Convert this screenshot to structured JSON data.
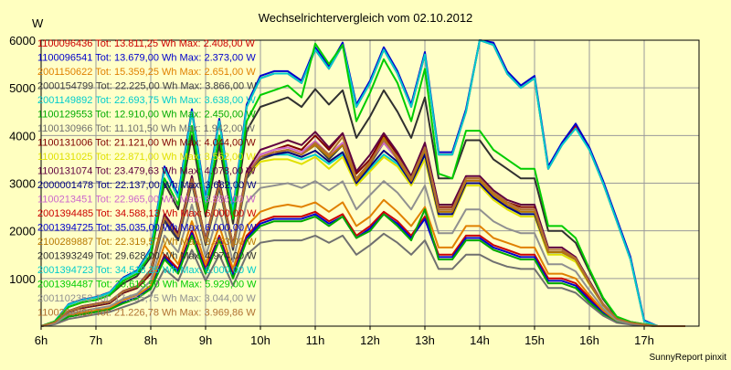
{
  "chart_data": {
    "type": "line",
    "title": "Wechselrichtervergleich vom 02.10.2012",
    "ylabel": "W",
    "xlabel": "",
    "footer": "SunnyReport pinxit",
    "ylim": [
      0,
      6000
    ],
    "yticks": [
      1000,
      2000,
      3000,
      4000,
      5000,
      6000
    ],
    "xlim": [
      6,
      18
    ],
    "xticks": [
      "6h",
      "7h",
      "8h",
      "9h",
      "10h",
      "11h",
      "12h",
      "13h",
      "14h",
      "15h",
      "16h",
      "17h"
    ],
    "grid": true,
    "x": [
      6.0,
      6.25,
      6.5,
      6.75,
      7.0,
      7.25,
      7.5,
      7.75,
      8.0,
      8.25,
      8.5,
      8.75,
      9.0,
      9.25,
      9.5,
      9.75,
      10.0,
      10.25,
      10.5,
      10.75,
      11.0,
      11.25,
      11.5,
      11.75,
      12.0,
      12.25,
      12.5,
      12.75,
      13.0,
      13.25,
      13.5,
      13.75,
      14.0,
      14.25,
      14.5,
      14.75,
      15.0,
      15.25,
      15.5,
      15.75,
      16.0,
      16.25,
      16.5,
      16.75,
      17.0,
      17.25,
      17.5,
      17.75
    ],
    "series": [
      {
        "id": "1100096436",
        "label": "1100096436 Tot: 13.811,25 Wh Max: 2.408,00 W",
        "color": "#cc0000",
        "values": [
          0,
          50,
          200,
          250,
          300,
          350,
          500,
          600,
          800,
          1500,
          1200,
          2000,
          1200,
          1900,
          1100,
          1900,
          2200,
          2300,
          2300,
          2300,
          2400,
          2200,
          2350,
          1900,
          2100,
          2400,
          2200,
          1900,
          2300,
          1500,
          1500,
          1900,
          1900,
          1700,
          1600,
          1500,
          1500,
          1000,
          1000,
          900,
          600,
          300,
          100,
          50,
          20,
          0,
          0,
          0
        ]
      },
      {
        "id": "1100096541",
        "label": "1100096541 Tot: 13.679,00 Wh Max: 2.373,00 W",
        "color": "#0000cc",
        "values": [
          0,
          50,
          200,
          250,
          300,
          350,
          500,
          600,
          800,
          1450,
          1150,
          1950,
          1150,
          1850,
          1050,
          1850,
          2150,
          2250,
          2250,
          2250,
          2350,
          2150,
          2300,
          1850,
          2050,
          2350,
          2150,
          1850,
          2250,
          1450,
          1450,
          1850,
          1850,
          1650,
          1550,
          1450,
          1450,
          950,
          950,
          850,
          550,
          280,
          90,
          40,
          20,
          0,
          0,
          0
        ]
      },
      {
        "id": "2001150622",
        "label": "2001150622 Tot: 15.359,25 Wh Max: 2.651,00 W",
        "color": "#e08000",
        "values": [
          0,
          60,
          220,
          280,
          330,
          380,
          550,
          650,
          850,
          1700,
          1300,
          2200,
          1300,
          2100,
          1200,
          2100,
          2400,
          2500,
          2550,
          2500,
          2600,
          2400,
          2600,
          2100,
          2300,
          2650,
          2400,
          2100,
          2500,
          1650,
          1650,
          2100,
          2100,
          1850,
          1750,
          1650,
          1650,
          1100,
          1100,
          1000,
          650,
          330,
          110,
          55,
          20,
          0,
          0,
          0
        ]
      },
      {
        "id": "2000154799",
        "label": "2000154799 Tot: 22.225,00 Wh Max: 3.866,00 W",
        "color": "#404040",
        "values": [
          0,
          80,
          300,
          400,
          450,
          500,
          700,
          800,
          1100,
          2200,
          1800,
          3000,
          1700,
          2900,
          1600,
          3100,
          3500,
          3600,
          3700,
          3600,
          3800,
          3500,
          3800,
          3000,
          3400,
          3850,
          3500,
          3000,
          3700,
          2400,
          2400,
          3000,
          3000,
          2700,
          2500,
          2400,
          2400,
          1600,
          1600,
          1400,
          900,
          450,
          150,
          70,
          30,
          0,
          0,
          0
        ]
      },
      {
        "id": "2001149892",
        "label": "2001149892 Tot: 22.693,75 Wh Max: 3.638,00 W",
        "color": "#00cccc",
        "values": [
          0,
          80,
          300,
          400,
          450,
          500,
          720,
          820,
          1150,
          2250,
          1850,
          3050,
          1750,
          2950,
          1650,
          3150,
          3550,
          3600,
          3600,
          3500,
          3600,
          3400,
          3600,
          3000,
          3300,
          3600,
          3400,
          3000,
          3600,
          2350,
          2350,
          3000,
          3000,
          2700,
          2500,
          2350,
          2350,
          1550,
          1550,
          1400,
          900,
          450,
          150,
          70,
          30,
          0,
          0,
          0
        ]
      },
      {
        "id": "1100129553",
        "label": "1100129553 Tot: 12.910,00 Wh Max: 2.450,00 W",
        "color": "#00aa00",
        "values": [
          0,
          50,
          200,
          250,
          300,
          350,
          480,
          580,
          780,
          1400,
          1100,
          1900,
          1100,
          1800,
          1000,
          1800,
          2100,
          2200,
          2200,
          2200,
          2300,
          2100,
          2300,
          1850,
          2000,
          2350,
          2100,
          1800,
          2450,
          1400,
          1400,
          1800,
          1800,
          1600,
          1500,
          1400,
          1400,
          900,
          900,
          800,
          500,
          250,
          80,
          40,
          15,
          0,
          0,
          0
        ]
      },
      {
        "id": "1100130966",
        "label": "1100130966 Tot: 11.101,50 Wh Max: 1.942,00 W",
        "color": "#707070",
        "values": [
          0,
          40,
          150,
          200,
          250,
          300,
          400,
          500,
          650,
          1200,
          950,
          1600,
          950,
          1500,
          850,
          1500,
          1750,
          1800,
          1800,
          1800,
          1900,
          1750,
          1900,
          1500,
          1700,
          1940,
          1750,
          1500,
          1800,
          1200,
          1200,
          1500,
          1500,
          1350,
          1250,
          1200,
          1200,
          800,
          800,
          700,
          450,
          220,
          70,
          35,
          15,
          0,
          0,
          0
        ]
      },
      {
        "id": "1100131006",
        "label": "1100131006 Tot: 21.121,00 Wh Max: 4.044,00 W",
        "color": "#800000",
        "values": [
          0,
          80,
          300,
          380,
          430,
          480,
          700,
          800,
          1100,
          2300,
          1900,
          3100,
          1800,
          3000,
          1700,
          3200,
          3600,
          3700,
          3800,
          3700,
          4000,
          3700,
          4044,
          3200,
          3500,
          4000,
          3600,
          3100,
          3800,
          2500,
          2500,
          3100,
          3100,
          2800,
          2600,
          2500,
          2500,
          1600,
          1600,
          1400,
          900,
          450,
          150,
          70,
          30,
          0,
          0,
          0
        ]
      },
      {
        "id": "1100131025",
        "label": "1100131025 Tot: 22.871,00 Wh Max: 3.552,00 W",
        "color": "#e0e000",
        "values": [
          0,
          80,
          300,
          400,
          450,
          500,
          720,
          820,
          1150,
          2250,
          1850,
          3050,
          1750,
          2950,
          1650,
          3150,
          3450,
          3500,
          3500,
          3400,
          3550,
          3300,
          3552,
          2950,
          3250,
          3550,
          3350,
          2950,
          3500,
          2300,
          2300,
          2950,
          2950,
          2650,
          2450,
          2300,
          2300,
          1500,
          1500,
          1350,
          880,
          440,
          150,
          70,
          30,
          0,
          0,
          0
        ]
      },
      {
        "id": "1100131074",
        "label": "1100131074 Tot: 23.479,63 Wh Max: 4.078,00 W",
        "color": "#600040",
        "values": [
          0,
          80,
          320,
          420,
          470,
          520,
          740,
          840,
          1180,
          2350,
          1950,
          3150,
          1800,
          3050,
          1700,
          3250,
          3700,
          3800,
          3900,
          3800,
          4078,
          3750,
          4050,
          3250,
          3600,
          4050,
          3650,
          3150,
          3850,
          2550,
          2550,
          3150,
          3150,
          2850,
          2650,
          2550,
          2550,
          1650,
          1650,
          1450,
          950,
          470,
          160,
          75,
          30,
          0,
          0,
          0
        ]
      },
      {
        "id": "2000001478",
        "label": "2000001478 Tot: 22.137,00 Wh Max: 3.682,00 W",
        "color": "#000080",
        "values": [
          0,
          80,
          300,
          400,
          450,
          500,
          720,
          820,
          1150,
          2250,
          1850,
          3050,
          1750,
          2950,
          1650,
          3150,
          3550,
          3600,
          3650,
          3550,
          3682,
          3450,
          3650,
          3000,
          3350,
          3682,
          3450,
          3000,
          3600,
          2350,
          2350,
          3000,
          3000,
          2700,
          2500,
          2350,
          2350,
          1550,
          1550,
          1400,
          900,
          450,
          150,
          70,
          30,
          0,
          0,
          0
        ]
      },
      {
        "id": "1100213451",
        "label": "1100213451 Tot: 22.965,00 Wh Max: 3.886,00 W",
        "color": "#cc66cc",
        "values": [
          0,
          80,
          310,
          410,
          460,
          510,
          730,
          830,
          1160,
          2280,
          1880,
          3080,
          1770,
          2980,
          1670,
          3180,
          3600,
          3700,
          3750,
          3650,
          3886,
          3600,
          3850,
          3100,
          3450,
          3850,
          3500,
          3050,
          3750,
          2450,
          2450,
          3050,
          3050,
          2750,
          2550,
          2450,
          2450,
          1600,
          1600,
          1420,
          920,
          460,
          155,
          72,
          30,
          0,
          0,
          0
        ]
      },
      {
        "id": "2001394485",
        "label": "2001394485 Tot: 34.588,13 Wh Max: 6.000,00 W",
        "color": "#cc0000",
        "values": [
          0,
          100,
          450,
          550,
          600,
          700,
          1000,
          1150,
          1600,
          3300,
          2700,
          4500,
          2600,
          4300,
          2400,
          4600,
          5200,
          5300,
          5300,
          5100,
          5800,
          5400,
          5900,
          4600,
          5100,
          5800,
          5300,
          4600,
          5700,
          3600,
          3600,
          4500,
          6000,
          5900,
          5300,
          5000,
          5200,
          3300,
          3800,
          4200,
          3700,
          3000,
          2200,
          1400,
          100,
          0,
          0,
          0
        ]
      },
      {
        "id": "2001394725",
        "label": "2001394725 Tot: 35.035,00 Wh Max: 6.000,00 W",
        "color": "#0000cc",
        "values": [
          0,
          100,
          460,
          560,
          610,
          710,
          1020,
          1170,
          1630,
          3350,
          2750,
          4550,
          2650,
          4350,
          2450,
          4650,
          5250,
          5350,
          5350,
          5150,
          5850,
          5450,
          5950,
          4650,
          5150,
          5850,
          5350,
          4650,
          5750,
          3650,
          3650,
          4550,
          6000,
          5950,
          5350,
          5050,
          5250,
          3350,
          3850,
          4250,
          3750,
          3050,
          2250,
          1450,
          120,
          0,
          0,
          0
        ]
      },
      {
        "id": "2100289887",
        "label": "2100289887 Tot: 22.319,57 Wh Max: 3.953,00 W",
        "color": "#b87800",
        "values": [
          0,
          80,
          310,
          410,
          460,
          510,
          730,
          830,
          1160,
          2280,
          1880,
          3080,
          1770,
          2980,
          1670,
          3180,
          3550,
          3650,
          3700,
          3600,
          3800,
          3550,
          3800,
          3050,
          3400,
          3953,
          3500,
          3050,
          3700,
          2400,
          2400,
          3050,
          3050,
          2750,
          2550,
          2400,
          2400,
          1550,
          1550,
          1400,
          900,
          450,
          150,
          70,
          30,
          0,
          0,
          0
        ]
      },
      {
        "id": "2001393249",
        "label": "2001393249 Tot: 29.628,00 Wh Max: 4.974,00 W",
        "color": "#303030",
        "values": [
          0,
          90,
          400,
          500,
          550,
          650,
          900,
          1050,
          1450,
          3000,
          2450,
          4000,
          2300,
          3800,
          2150,
          4100,
          4600,
          4700,
          4800,
          4600,
          4974,
          4650,
          4950,
          3950,
          4400,
          4950,
          4500,
          3950,
          4800,
          3100,
          3100,
          3900,
          3900,
          3500,
          3300,
          3100,
          3100,
          2000,
          2000,
          1750,
          1150,
          570,
          190,
          90,
          40,
          0,
          0,
          0
        ]
      },
      {
        "id": "2001394723",
        "label": "2001394723 Tot: 34.518,25 Wh Max: 6.000,00 W",
        "color": "#00cccc",
        "values": [
          0,
          100,
          450,
          550,
          600,
          700,
          1000,
          1150,
          1600,
          3300,
          2700,
          4500,
          2600,
          4300,
          2400,
          4600,
          5200,
          5300,
          5300,
          5100,
          5800,
          5400,
          5900,
          4600,
          5100,
          5800,
          5300,
          4600,
          5700,
          3600,
          3600,
          4500,
          6000,
          5900,
          5300,
          5000,
          5200,
          3300,
          3800,
          4150,
          3700,
          3000,
          2200,
          1400,
          100,
          0,
          0,
          0
        ]
      },
      {
        "id": "2001394487",
        "label": "2001394487 Tot: 29.613,50 Wh Max: 5.929,00 W",
        "color": "#00cc00",
        "values": [
          0,
          100,
          400,
          500,
          550,
          650,
          950,
          1100,
          1500,
          3100,
          2550,
          4200,
          2400,
          4000,
          2250,
          4300,
          4850,
          4950,
          5050,
          4800,
          5929,
          5500,
          5900,
          4300,
          4900,
          5600,
          5100,
          4300,
          5400,
          3200,
          3100,
          4100,
          4100,
          3700,
          3500,
          3300,
          3300,
          2100,
          2100,
          1850,
          1200,
          600,
          200,
          90,
          40,
          0,
          0,
          0
        ]
      },
      {
        "id": "2001102352",
        "label": "2001102352 Tot: 17.355,75 Wh Max: 3.044,00 W",
        "color": "#909090",
        "values": [
          0,
          60,
          250,
          320,
          370,
          420,
          580,
          680,
          950,
          1900,
          1550,
          2550,
          1450,
          2450,
          1350,
          2600,
          2900,
          2950,
          3000,
          2900,
          3044,
          2850,
          3040,
          2450,
          2750,
          3044,
          2800,
          2450,
          2950,
          1950,
          1950,
          2450,
          2450,
          2200,
          2050,
          1950,
          1950,
          1300,
          1300,
          1150,
          750,
          380,
          125,
          60,
          25,
          0,
          0,
          0
        ]
      },
      {
        "id": "1100288880",
        "label": "1100288880 Tot: 21.226,78 Wh Max: 3.969,86 W",
        "color": "#b07030",
        "values": [
          0,
          80,
          310,
          410,
          460,
          510,
          730,
          830,
          1160,
          2280,
          1880,
          3080,
          1770,
          2980,
          1670,
          3180,
          3550,
          3650,
          3700,
          3600,
          3850,
          3600,
          3970,
          3100,
          3450,
          3900,
          3550,
          3100,
          3750,
          2450,
          2450,
          3100,
          3100,
          2800,
          2600,
          2450,
          2450,
          1600,
          1600,
          1420,
          920,
          460,
          155,
          72,
          30,
          0,
          0,
          0
        ]
      }
    ]
  }
}
